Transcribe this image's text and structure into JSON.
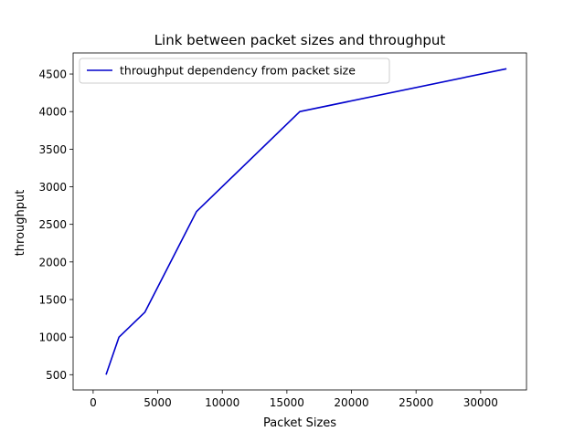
{
  "chart_data": {
    "type": "line",
    "title": "Link between packet sizes and throughput",
    "xlabel": "Packet Sizes",
    "ylabel": "throughput",
    "xlim": [
      -1550,
      33550
    ],
    "ylim": [
      297,
      4780
    ],
    "x_ticks": [
      0,
      5000,
      10000,
      15000,
      20000,
      25000,
      30000
    ],
    "y_ticks": [
      500,
      1000,
      1500,
      2000,
      2500,
      3000,
      3500,
      4000,
      4500
    ],
    "grid": false,
    "legend_position": "upper-left",
    "series": [
      {
        "name": "throughput dependency from packet size",
        "color": "#0000cc",
        "x": [
          1000,
          2000,
          4000,
          8000,
          16000,
          32000
        ],
        "y": [
          500,
          1000,
          1330,
          2670,
          4000,
          4570
        ]
      }
    ]
  }
}
